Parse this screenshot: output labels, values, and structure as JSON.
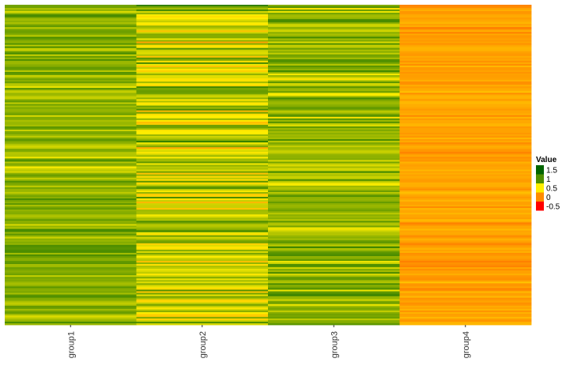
{
  "chart_data": {
    "type": "heatmap",
    "title": "",
    "xlabel": "",
    "ylabel": "",
    "categories": [
      "group1",
      "group2",
      "group3",
      "group4"
    ],
    "row_count": 200,
    "column_profiles": [
      {
        "name": "group1",
        "mean": 0.82,
        "spread": 0.16,
        "min": 0.3,
        "max": 1.1
      },
      {
        "name": "group2",
        "mean": 0.65,
        "spread": 0.3,
        "min": -0.2,
        "max": 1.45
      },
      {
        "name": "group3",
        "mean": 0.8,
        "spread": 0.2,
        "min": 0.2,
        "max": 1.4
      },
      {
        "name": "group4",
        "mean": 0.12,
        "spread": 0.1,
        "min": -0.15,
        "max": 0.35
      }
    ],
    "color_scale": {
      "breaks": [
        1.5,
        1,
        0.5,
        0,
        -0.5
      ],
      "colors": [
        "#006400",
        "#4f8f00",
        "#ffee00",
        "#ff8c00",
        "#ff0000"
      ]
    },
    "legend": {
      "title": "Value",
      "placement": "right",
      "labels": [
        "1.5",
        "1",
        "0.5",
        "0",
        "-0.5"
      ]
    }
  }
}
